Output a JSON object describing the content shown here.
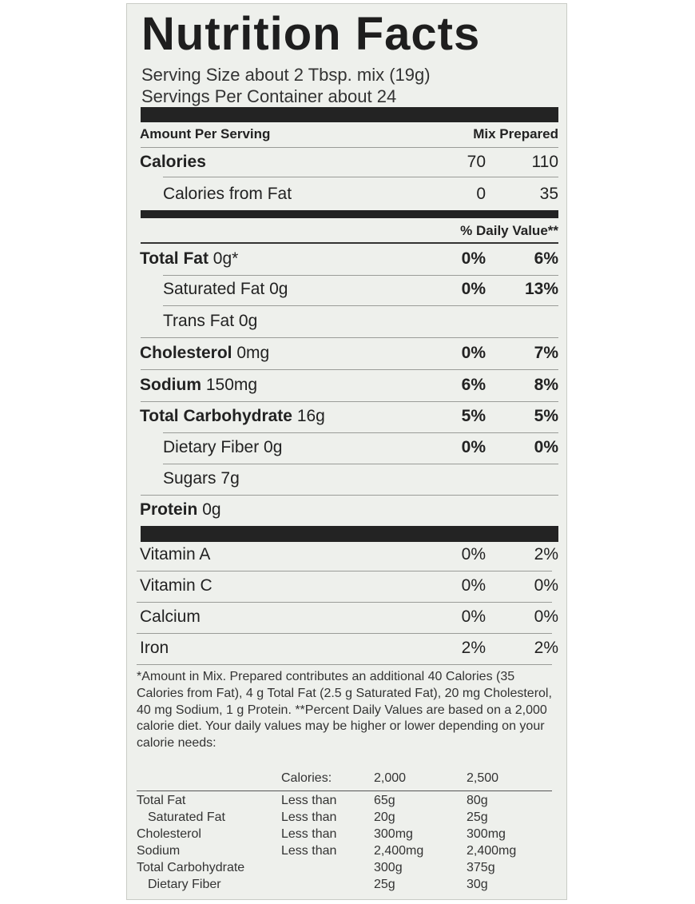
{
  "title": "Nutrition Facts",
  "serving_size": "Serving Size about 2 Tbsp. mix (19g)",
  "servings_per_container": "Servings Per Container about 24",
  "header": {
    "label": "Amount Per Serving",
    "col1": "Mix",
    "col2": "Prepared"
  },
  "calories": [
    {
      "label": "Calories",
      "mix": "70",
      "prepared": "110",
      "bold": true,
      "indent": false
    },
    {
      "label": "Calories from Fat",
      "mix": "0",
      "prepared": "35",
      "bold": false,
      "indent": true
    }
  ],
  "daily_value_header": "% Daily Value**",
  "nutrients": [
    {
      "name": "Total Fat",
      "amount": "0g*",
      "mix": "0%",
      "prepared": "6%",
      "bold": true,
      "indent": false
    },
    {
      "name": "Saturated Fat",
      "amount": "0g",
      "mix": "0%",
      "prepared": "13%",
      "bold": false,
      "indent": true
    },
    {
      "name": "Trans Fat",
      "amount": "0g",
      "mix": "",
      "prepared": "",
      "bold": false,
      "indent": true
    },
    {
      "name": "Cholesterol",
      "amount": "0mg",
      "mix": "0%",
      "prepared": "7%",
      "bold": true,
      "indent": false
    },
    {
      "name": "Sodium",
      "amount": "150mg",
      "mix": "6%",
      "prepared": "8%",
      "bold": true,
      "indent": false
    },
    {
      "name": "Total Carbohydrate",
      "amount": "16g",
      "mix": "5%",
      "prepared": "5%",
      "bold": true,
      "indent": false
    },
    {
      "name": "Dietary Fiber",
      "amount": "0g",
      "mix": "0%",
      "prepared": "0%",
      "bold": false,
      "indent": true
    },
    {
      "name": "Sugars",
      "amount": "7g",
      "mix": "",
      "prepared": "",
      "bold": false,
      "indent": true
    },
    {
      "name": "Protein",
      "amount": "0g",
      "mix": "",
      "prepared": "",
      "bold": true,
      "indent": false
    }
  ],
  "vitamins": [
    {
      "name": "Vitamin A",
      "mix": "0%",
      "prepared": "2%"
    },
    {
      "name": "Vitamin C",
      "mix": "0%",
      "prepared": "0%"
    },
    {
      "name": "Calcium",
      "mix": "0%",
      "prepared": "0%"
    },
    {
      "name": "Iron",
      "mix": "2%",
      "prepared": "2%"
    }
  ],
  "footnote": "*Amount in Mix. Prepared contributes an additional 40 Calories (35 Calories from Fat), 4 g Total Fat (2.5 g Saturated Fat), 20 mg Cholesterol, 40 mg Sodium, 1 g Protein. **Percent Daily Values are based on a 2,000 calorie diet. Your daily values may be higher or lower depending on your calorie needs:",
  "dv_table": {
    "header": [
      "",
      "Calories:",
      "2,000",
      "2,500"
    ],
    "rows": [
      [
        "Total Fat",
        "Less than",
        "65g",
        "80g"
      ],
      [
        "Saturated Fat",
        "Less than",
        "20g",
        "25g"
      ],
      [
        "Cholesterol",
        "Less than",
        "300mg",
        "300mg"
      ],
      [
        "Sodium",
        "Less than",
        "2,400mg",
        "2,400mg"
      ],
      [
        "Total Carbohydrate",
        "",
        "300g",
        "375g"
      ],
      [
        "Dietary Fiber",
        "",
        "25g",
        "30g"
      ]
    ]
  },
  "colors": {
    "background": "#eef0ec",
    "ink": "#222222",
    "bars": "#232323"
  }
}
